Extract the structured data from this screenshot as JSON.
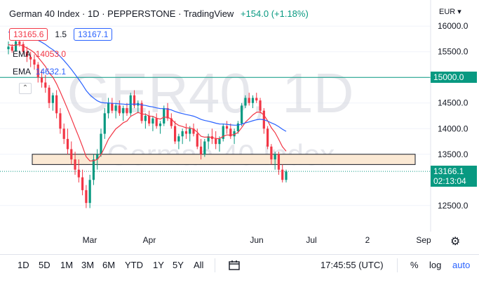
{
  "header": {
    "title": "German 40 Index · 1D · PEPPERSTONE · TradingView",
    "change": "+154.0 (+1.18%)"
  },
  "ohlc": {
    "sell": "13165.6",
    "spread": "1.5",
    "buy": "13167.1"
  },
  "indicators": [
    {
      "label": "EMA",
      "value": "14053.0",
      "color": "#f23645"
    },
    {
      "label": "EMA",
      "value": "14632.1",
      "color": "#2962ff"
    }
  ],
  "watermark": {
    "symbol": "GER40, 1D",
    "name": "German 40 Index"
  },
  "price_axis": {
    "currency": "EUR",
    "ticks": [
      "16000.0",
      "15500.0",
      "15000.0",
      "14500.0",
      "14000.0",
      "13500.0",
      "12500.0"
    ],
    "line_label": "15000.0",
    "last_price": "13166.1",
    "countdown": "02:13:04"
  },
  "time_axis": {
    "ticks": [
      "Mar",
      "Apr",
      "Jun",
      "Jul",
      "2",
      "Sep"
    ]
  },
  "toolbar": {
    "ranges": [
      "1D",
      "5D",
      "1M",
      "3M",
      "6M",
      "YTD",
      "1Y",
      "5Y",
      "All"
    ],
    "time": "17:45:55 (UTC)",
    "percent": "%",
    "log": "log",
    "auto": "auto"
  },
  "icons": {
    "collapse": "chevron-up-icon",
    "gear": "gear-icon",
    "compare": "date-range-icon"
  },
  "colors": {
    "up": "#089981",
    "down": "#f23645",
    "ema_fast": "#f23645",
    "ema_slow": "#2962ff",
    "zone_fill": "#fbe9d4",
    "accent": "#2962ff"
  },
  "chart_data": {
    "type": "candlestick",
    "price_range": [
      12100,
      16400
    ],
    "zone": [
      13300,
      13500
    ],
    "horizontal_line": 15000,
    "candles": [
      [
        15550,
        15700,
        15450,
        15600
      ],
      [
        15600,
        15650,
        15480,
        15520
      ],
      [
        15520,
        15750,
        15500,
        15700
      ],
      [
        15700,
        15800,
        15600,
        15650
      ],
      [
        15650,
        15700,
        15450,
        15500
      ],
      [
        15500,
        15600,
        15300,
        15400
      ],
      [
        15400,
        15500,
        15200,
        15350
      ],
      [
        15350,
        15450,
        15150,
        15250
      ],
      [
        15250,
        15300,
        14900,
        15000
      ],
      [
        15000,
        15150,
        14800,
        14900
      ],
      [
        14900,
        15050,
        14700,
        14800
      ],
      [
        14800,
        14850,
        14400,
        14500
      ],
      [
        14500,
        14700,
        14350,
        14650
      ],
      [
        14650,
        14750,
        14200,
        14300
      ],
      [
        14300,
        14400,
        13900,
        14000
      ],
      [
        14000,
        14100,
        13700,
        13800
      ],
      [
        13800,
        14000,
        13500,
        13600
      ],
      [
        13600,
        13750,
        13300,
        13400
      ],
      [
        13400,
        13550,
        13100,
        13200
      ],
      [
        13200,
        13400,
        12950,
        13050
      ],
      [
        13050,
        13200,
        12700,
        12800
      ],
      [
        12800,
        12900,
        12450,
        12550
      ],
      [
        12550,
        13100,
        12450,
        13000
      ],
      [
        13000,
        13500,
        12900,
        13400
      ],
      [
        13400,
        13600,
        13200,
        13500
      ],
      [
        13500,
        14000,
        13450,
        13900
      ],
      [
        13900,
        14400,
        13800,
        14300
      ],
      [
        14300,
        14600,
        14200,
        14500
      ],
      [
        14500,
        14600,
        14300,
        14350
      ],
      [
        14350,
        14500,
        14200,
        14450
      ],
      [
        14450,
        14550,
        14250,
        14300
      ],
      [
        14300,
        14450,
        14150,
        14400
      ],
      [
        14400,
        14500,
        14250,
        14300
      ],
      [
        14300,
        14700,
        14250,
        14650
      ],
      [
        14650,
        14750,
        14400,
        14450
      ],
      [
        14450,
        14550,
        14300,
        14500
      ],
      [
        14500,
        14550,
        14100,
        14150
      ],
      [
        14150,
        14300,
        14000,
        14250
      ],
      [
        14250,
        14350,
        14050,
        14100
      ],
      [
        14100,
        14250,
        13950,
        14200
      ],
      [
        14200,
        14300,
        14000,
        14050
      ],
      [
        14050,
        14150,
        13900,
        14100
      ],
      [
        14100,
        14450,
        14050,
        14400
      ],
      [
        14400,
        14500,
        14150,
        14200
      ],
      [
        14200,
        14300,
        14000,
        14050
      ],
      [
        14050,
        14150,
        13700,
        13750
      ],
      [
        13750,
        13900,
        13600,
        13850
      ],
      [
        13850,
        14000,
        13700,
        13950
      ],
      [
        13950,
        14100,
        13800,
        13900
      ],
      [
        13900,
        14050,
        13750,
        14000
      ],
      [
        14000,
        14100,
        13850,
        13900
      ],
      [
        13900,
        14000,
        13600,
        13650
      ],
      [
        13650,
        13800,
        13400,
        13500
      ],
      [
        13500,
        13800,
        13450,
        13750
      ],
      [
        13750,
        13900,
        13600,
        13850
      ],
      [
        13850,
        14000,
        13700,
        13800
      ],
      [
        13800,
        13950,
        13600,
        13700
      ],
      [
        13700,
        13850,
        13550,
        13800
      ],
      [
        13800,
        14100,
        13750,
        14050
      ],
      [
        14050,
        14150,
        13900,
        14000
      ],
      [
        14000,
        14100,
        13800,
        13850
      ],
      [
        13850,
        14000,
        13700,
        13950
      ],
      [
        13950,
        14150,
        13900,
        14100
      ],
      [
        14100,
        14500,
        14050,
        14450
      ],
      [
        14450,
        14650,
        14400,
        14600
      ],
      [
        14600,
        14700,
        14450,
        14500
      ],
      [
        14500,
        14650,
        14400,
        14600
      ],
      [
        14600,
        14700,
        14500,
        14550
      ],
      [
        14550,
        14600,
        14300,
        14350
      ],
      [
        14350,
        14400,
        13900,
        14000
      ],
      [
        14000,
        14050,
        13600,
        13650
      ],
      [
        13650,
        13700,
        13300,
        13400
      ],
      [
        13400,
        13550,
        13200,
        13500
      ],
      [
        13500,
        13550,
        13100,
        13200
      ],
      [
        13200,
        13300,
        12950,
        13000
      ],
      [
        13000,
        13200,
        12950,
        13166
      ]
    ],
    "ema_fast_color": "#f23645",
    "ema_slow_color": "#2962ff"
  }
}
